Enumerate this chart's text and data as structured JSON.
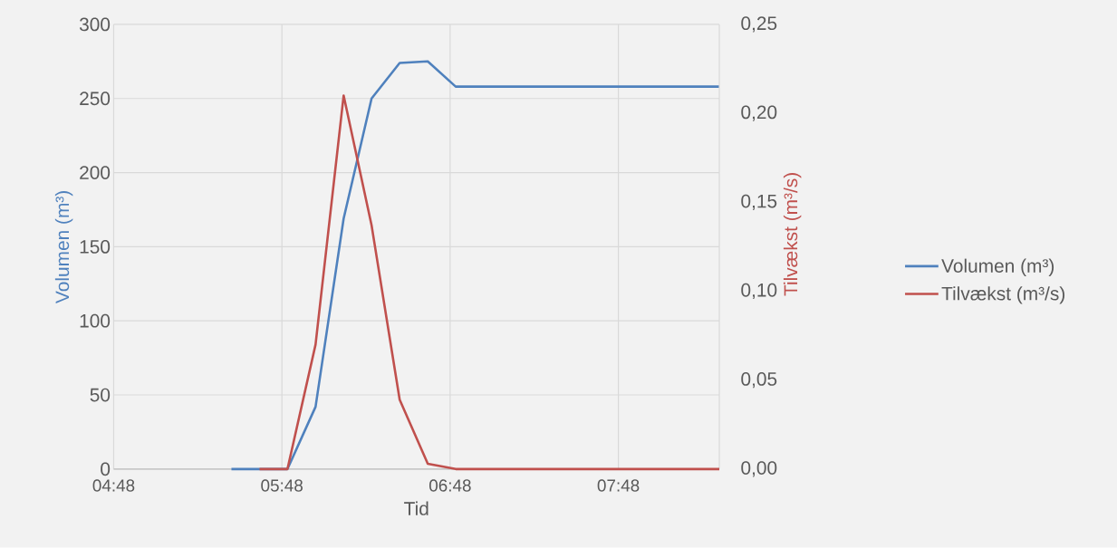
{
  "chart_data": {
    "type": "line",
    "xlabel": "Tid",
    "ylabel": "Volumen (m³)",
    "y2label": "Tilvækst (m³/s)",
    "series": [
      {
        "name": "Volumen (m³)",
        "color": "#4f81bd",
        "x": [
          5.5,
          5.833,
          6.0,
          6.167,
          6.333,
          6.5,
          6.667,
          6.833,
          8.4
        ],
        "values": [
          0,
          0,
          42,
          169,
          250,
          274,
          275,
          258,
          258
        ]
      },
      {
        "name": "Tilvækst (m³/s)",
        "color": "#c0504d",
        "axis": "y2",
        "x": [
          5.667,
          5.833,
          6.0,
          6.167,
          6.333,
          6.5,
          6.667,
          6.833,
          8.4
        ],
        "values": [
          0,
          0,
          0.07,
          0.21,
          0.137,
          0.039,
          0.003,
          0,
          0
        ]
      }
    ],
    "xlim": [
      4.8,
      8.4
    ],
    "xticks": [
      {
        "value": 4.8,
        "label": "04:48"
      },
      {
        "value": 5.8,
        "label": "05:48"
      },
      {
        "value": 6.8,
        "label": "06:48"
      },
      {
        "value": 7.8,
        "label": "07:48"
      }
    ],
    "ylim": [
      0,
      300
    ],
    "yticks": [
      0,
      50,
      100,
      150,
      200,
      250,
      300
    ],
    "y2lim": [
      0,
      0.25
    ],
    "y2ticks": [
      {
        "value": 0,
        "label": "0,00"
      },
      {
        "value": 0.05,
        "label": "0,05"
      },
      {
        "value": 0.1,
        "label": "0,10"
      },
      {
        "value": 0.15,
        "label": "0,15"
      },
      {
        "value": 0.2,
        "label": "0,20"
      },
      {
        "value": 0.25,
        "label": "0,25"
      }
    ],
    "grid": true,
    "legend": "right",
    "marker": "none",
    "line_style": "solid"
  }
}
